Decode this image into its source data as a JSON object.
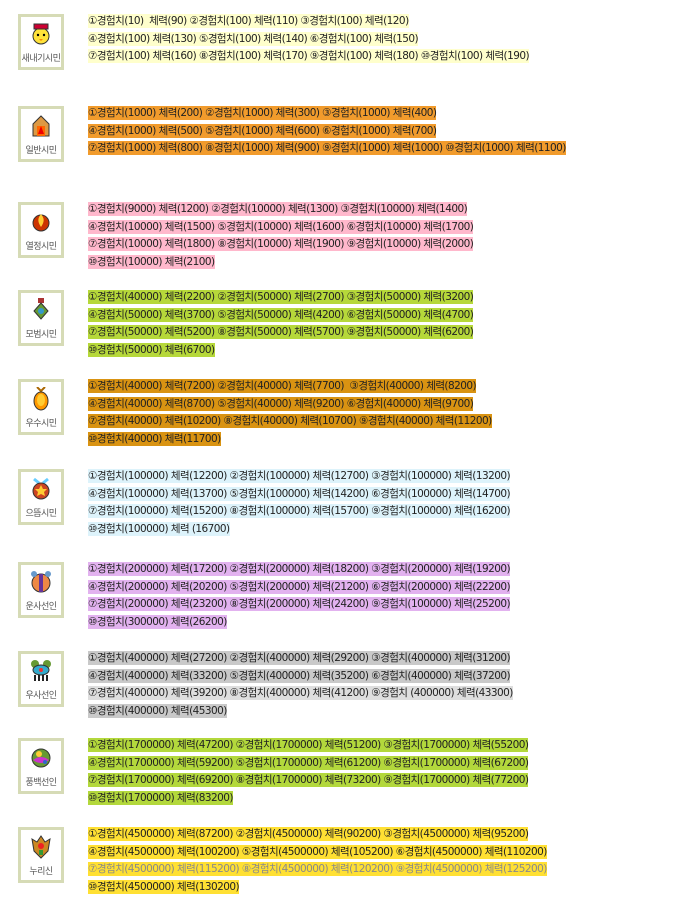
{
  "sections": [
    {
      "label": "새내기시민",
      "icon": "chick-icon",
      "color": "#ffffcc",
      "tops": [
        14
      ],
      "lines": [
        "①경험치(10)  체력(90) ②경험치(100) 체력(110) ③경험치(100) 체력(120)",
        "④경험치(100) 체력(130) ⑤경험치(100) 체력(140) ⑥경험치(100) 체력(150)",
        "⑦경험치(100) 체력(160) ⑧경험치(100) 체력(170) ⑨경험치(100) 체력(180) ⑩경험치(100) 체력(190)"
      ]
    },
    {
      "label": "일반시민",
      "icon": "house-icon",
      "color": "#f19b2c",
      "lines": [
        "①경험치(1000) 체력(200) ②경험치(1000) 체력(300) ③경험치(1000) 체력(400)",
        "④경험치(1000) 체력(500) ⑤경험치(1000) 체력(600) ⑥경험치(1000) 체력(700)",
        "⑦경험치(1000) 체력(800) ⑧경험치(1000) 체력(900) ⑨경험치(1000) 체력(1000) ⑩경험치(1000) 체력(1100)"
      ]
    },
    {
      "label": "열정시민",
      "icon": "flame-icon",
      "color": "#ffb8cc",
      "lines": [
        "①경험치(9000) 체력(1200) ②경험치(10000) 체력(1300) ③경험치(10000) 체력(1400)",
        "④경험치(10000) 체력(1500) ⑤경험치(10000) 체력(1600) ⑥경험치(10000) 체력(1700)",
        "⑦경험치(10000) 체력(1800) ⑧경험치(10000) 체력(1900) ⑨경험치(10000) 체력(2000)",
        "⑩경험치(10000) 체력(2100)"
      ]
    },
    {
      "label": "모범시민",
      "icon": "medal-icon",
      "color": "#b6d83a",
      "lines": [
        "①경험치(40000) 체력(2200) ②경험치(50000) 체력(2700) ③경험치(50000) 체력(3200)",
        "④경험치(50000) 체력(3700) ⑤경험치(50000) 체력(4200) ⑥경험치(50000) 체력(4700)",
        "⑦경험치(50000) 체력(5200) ⑧경험치(50000) 체력(5700) ⑨경험치(50000) 체력(6200)",
        "⑩경험치(50000) 체력(6700)"
      ]
    },
    {
      "label": "우수시민",
      "icon": "gold-medal-icon",
      "color": "#d99312",
      "lines": [
        "①경험치(40000) 체력(7200) ②경험치(40000) 체력(7700)  ③경험치(40000) 체력(8200)",
        "④경험치(40000) 체력(8700) ⑤경험치(40000) 체력(9200) ⑥경험치(40000) 체력(9700)",
        "⑦경험치(40000) 체력(10200) ⑧경험치(40000) 체력(10700) ⑨경험치(40000) 체력(11200)",
        "⑩경험치(40000) 체력(11700)"
      ]
    },
    {
      "label": "으뜸시민",
      "icon": "star-medal-icon",
      "color": "#ddf3fb",
      "lines": [
        "①경험치(100000) 체력(12200) ②경험치(100000) 체력(12700) ③경험치(100000) 체력(13200)",
        "④경험치(100000) 체력(13700) ⑤경험치(100000) 체력(14200) ⑥경험치(100000) 체력(14700)",
        "⑦경험치(100000) 체력(15200) ⑧경험치(100000) 체력(15700) ⑨경험치(100000) 체력(16200)",
        "⑩경험치(100000) 체력 (16700)"
      ]
    },
    {
      "label": "운사선인",
      "icon": "cloud-emblem-icon",
      "color": "#e2b2ef",
      "lines": [
        "①경험치(200000) 체력(17200) ②경험치(200000) 체력(18200) ③경험치(200000) 체력(19200)",
        "④경험치(200000) 체력(20200) ⑤경험치(200000) 체력(21200) ⑥경험치(200000) 체력(22200)",
        "⑦경험치(200000) 체력(23200) ⑧경험치(200000) 체력(24200) ⑨경험치(100000) 체력(25200)",
        "⑩경험치(300000) 체력(26200)"
      ]
    },
    {
      "label": "우사선인",
      "icon": "rain-emblem-icon",
      "color": "#c9c9c9",
      "line3color": "#dedede",
      "lines": [
        "①경험치(400000) 체력(27200) ②경험치(400000) 체력(29200) ③경험치(400000) 체력(31200)",
        "④경험치(400000) 체력(33200) ⑤경험치(400000) 체력(35200) ⑥경험치(400000) 체력(37200)",
        "⑦경험치(400000) 체력(39200) ⑧경험치(400000) 체력(41200) ⑨경험치 (400000) 체력(43300)",
        "⑩경험치(400000) 체력(45300)"
      ]
    },
    {
      "label": "풍백선인",
      "icon": "wind-emblem-icon",
      "color": "#b3d83c",
      "lines": [
        "①경험치(1700000) 체력(47200) ②경험치(1700000) 체력(51200) ③경험치(1700000) 체력(55200)",
        "④경험치(1700000) 체력(59200) ⑤경험치(1700000) 체력(61200) ⑥경험치(1700000) 체력(67200)",
        "⑦경험치(1700000) 체력(69200) ⑧경험치(1700000) 체력(73200) ⑨경험치(1700000) 체력(77200)",
        "⑩경험치(1700000) 체력(83200)"
      ]
    },
    {
      "label": "누리신",
      "icon": "god-emblem-icon",
      "color": "#ffe033",
      "line3text": "#8a8a8a",
      "lines": [
        "①경험치(4500000) 체력(87200) ②경험치(4500000) 체력(90200) ③경험치(4500000) 체력(95200)",
        "④경험치(4500000) 체력(100200) ⑤경험치(4500000) 체력(105200) ⑥경험치(4500000) 체력(110200)",
        "⑦경험치(4500000) 체력(115200) ⑧경험치(4500000) 체력(120200) ⑨경험치(4500000) 체력(125200)",
        "⑩경험치(4500000) 체력(130200)"
      ]
    }
  ]
}
